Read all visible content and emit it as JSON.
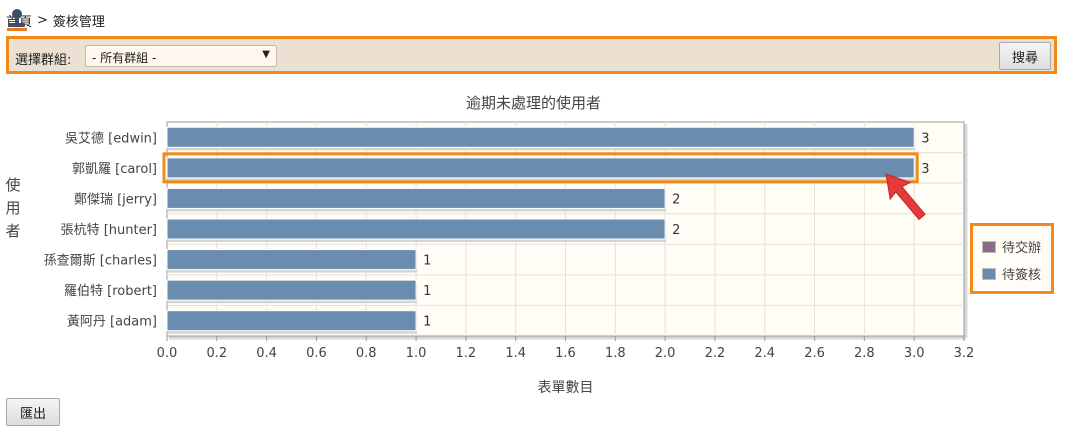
{
  "breadcrumb": {
    "home": "首頁",
    "separator": ">",
    "current": "簽核管理"
  },
  "toolbar": {
    "group_label": "選擇群組:",
    "group_selected": "- 所有群組 -",
    "search_label": "搜尋"
  },
  "export_label": "匯出",
  "chart_data": {
    "type": "bar",
    "orientation": "horizontal",
    "title": "逾期未處理的使用者",
    "xlabel": "表單數目",
    "ylabel": "使用者",
    "categories": [
      "吳艾德 [edwin]",
      "郭凱羅 [carol]",
      "鄭傑瑞 [jerry]",
      "張杭特 [hunter]",
      "孫查爾斯 [charles]",
      "羅伯特 [robert]",
      "黃阿丹 [adam]"
    ],
    "series": [
      {
        "name": "待交辦",
        "color": "#8a6c86",
        "values": [
          0,
          0,
          0,
          0,
          0,
          0,
          0
        ]
      },
      {
        "name": "待簽核",
        "color": "#6a8caf",
        "values": [
          3,
          3,
          2,
          2,
          1,
          1,
          1
        ]
      }
    ],
    "data_labels": [
      "3",
      "3",
      "2",
      "2",
      "1",
      "1",
      "1"
    ],
    "xlim": [
      0,
      3.2
    ],
    "xticks": [
      "0.0",
      "0.2",
      "0.4",
      "0.6",
      "0.8",
      "1.0",
      "1.2",
      "1.4",
      "1.6",
      "1.8",
      "2.0",
      "2.2",
      "2.4",
      "2.6",
      "2.8",
      "3.0",
      "3.2"
    ],
    "grid": true,
    "legend_position": "right",
    "highlighted_category": "郭凱羅 [carol]"
  }
}
